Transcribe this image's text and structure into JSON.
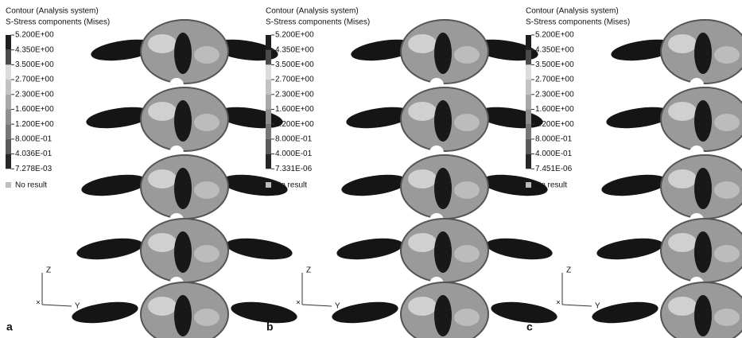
{
  "panels": [
    {
      "letter": "a",
      "title": "Contour (Analysis system)",
      "subtitle": "S-Stress components (Mises)",
      "legend": [
        "5.200E+00",
        "4.350E+00",
        "3.500E+00",
        "2.700E+00",
        "2.300E+00",
        "1.600E+00",
        "1.200E+00",
        "8.000E-01",
        "4.036E-01",
        "7.278E-03"
      ],
      "no_result": "No result",
      "axis_z": "Z",
      "axis_y": "Y"
    },
    {
      "letter": "b",
      "title": "Contour (Analysis system)",
      "subtitle": "S-Stress components (Mises)",
      "legend": [
        "5.200E+00",
        "4.350E+00",
        "3.500E+00",
        "2.700E+00",
        "2.300E+00",
        "1.600E+00",
        "1.200E+00",
        "8.000E-01",
        "4.000E-01",
        "7.331E-06"
      ],
      "no_result": "No result",
      "axis_z": "Z",
      "axis_y": "Y"
    },
    {
      "letter": "c",
      "title": "Contour (Analysis system)",
      "subtitle": "S-Stress components (Mises)",
      "legend": [
        "5.200E+00",
        "4.350E+00",
        "3.500E+00",
        "2.700E+00",
        "2.300E+00",
        "1.600E+00",
        "1.200E+00",
        "8.000E-01",
        "4.000E-01",
        "7.451E-06"
      ],
      "no_result": "No result",
      "axis_z": "Z",
      "axis_y": "Y"
    }
  ]
}
